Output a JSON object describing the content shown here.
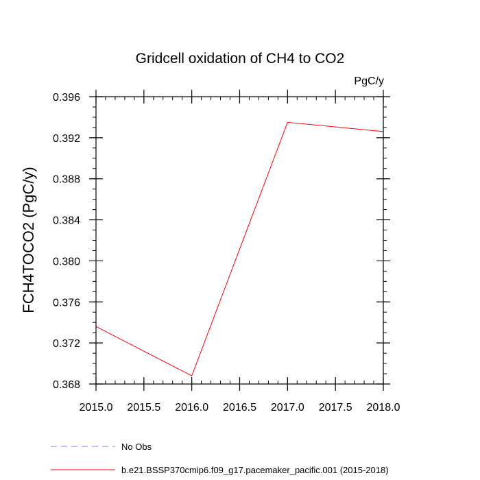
{
  "chart_data": {
    "type": "line",
    "title": "Gridcell oxidation of CH4 to CO2",
    "units_label": "PgC/y",
    "xlabel": "",
    "ylabel": "FCH4TOCO2  (PgC/y)",
    "xlim": [
      2015.0,
      2018.0
    ],
    "ylim": [
      0.368,
      0.396
    ],
    "xticks": [
      2015.0,
      2015.5,
      2016.0,
      2016.5,
      2017.0,
      2017.5,
      2018.0
    ],
    "xtick_labels": [
      "2015.0",
      "2015.5",
      "2016.0",
      "2016.5",
      "2017.0",
      "2017.5",
      "2018.0"
    ],
    "yticks": [
      0.368,
      0.372,
      0.376,
      0.38,
      0.384,
      0.388,
      0.392,
      0.396
    ],
    "ytick_labels": [
      "0.368",
      "0.372",
      "0.376",
      "0.380",
      "0.384",
      "0.388",
      "0.392",
      "0.396"
    ],
    "x_minor_step": 0.1,
    "y_minor_step": 0.001,
    "grid": false,
    "legend_position": "bottom",
    "series": [
      {
        "name": "No Obs",
        "color": "#8080f0",
        "dashed": true,
        "x": [],
        "y": []
      },
      {
        "name": "b.e21.BSSP370cmip6.f09_g17.pacemaker_pacific.001 (2015-2018)",
        "color": "#ff0000",
        "dashed": false,
        "x": [
          2015.0,
          2016.0,
          2017.0,
          2018.0
        ],
        "y": [
          0.3736,
          0.3688,
          0.3935,
          0.3926
        ]
      }
    ]
  }
}
